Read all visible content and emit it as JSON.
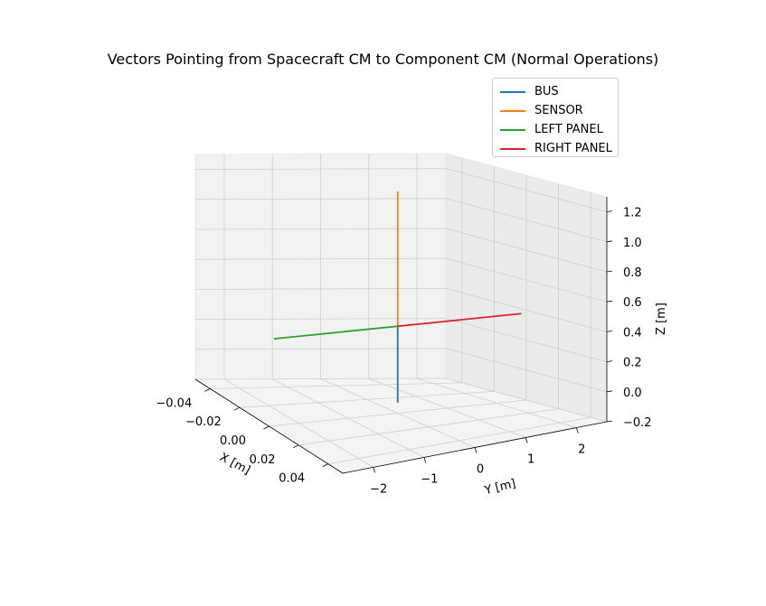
{
  "chart_data": {
    "type": "line",
    "title": "Vectors Pointing from Spacecraft CM to Component CM (Normal Operations)",
    "xlabel": "X [m]",
    "ylabel": "Y [m]",
    "zlabel": "Z [m]",
    "xlim": [
      -0.05,
      0.05
    ],
    "ylim": [
      -2.6,
      2.6
    ],
    "zlim": [
      -0.2,
      1.3
    ],
    "x_ticks": [
      "−0.04",
      "−0.02",
      "0.00",
      "0.02",
      "0.04"
    ],
    "y_ticks": [
      "−2",
      "−1",
      "0",
      "1",
      "2"
    ],
    "z_ticks": [
      "−0.2",
      "0.0",
      "0.2",
      "0.4",
      "0.6",
      "0.8",
      "1.0",
      "1.2"
    ],
    "legend_placement": "top-right",
    "grid": true,
    "series": [
      {
        "name": "BUS",
        "color": "#1f77b4",
        "start": [
          0,
          0,
          0.38
        ],
        "end": [
          0,
          0,
          -0.13
        ]
      },
      {
        "name": "SENSOR",
        "color": "#ff7f0e",
        "start": [
          0,
          0,
          0.38
        ],
        "end": [
          0,
          0,
          1.28
        ]
      },
      {
        "name": "LEFT PANEL",
        "color": "#2ca02c",
        "start": [
          0,
          0,
          0.38
        ],
        "end": [
          0,
          -2.5,
          0.38
        ]
      },
      {
        "name": "RIGHT PANEL",
        "color": "#d62728",
        "start": [
          0,
          0,
          0.38
        ],
        "end": [
          0,
          2.5,
          0.38
        ]
      }
    ]
  }
}
